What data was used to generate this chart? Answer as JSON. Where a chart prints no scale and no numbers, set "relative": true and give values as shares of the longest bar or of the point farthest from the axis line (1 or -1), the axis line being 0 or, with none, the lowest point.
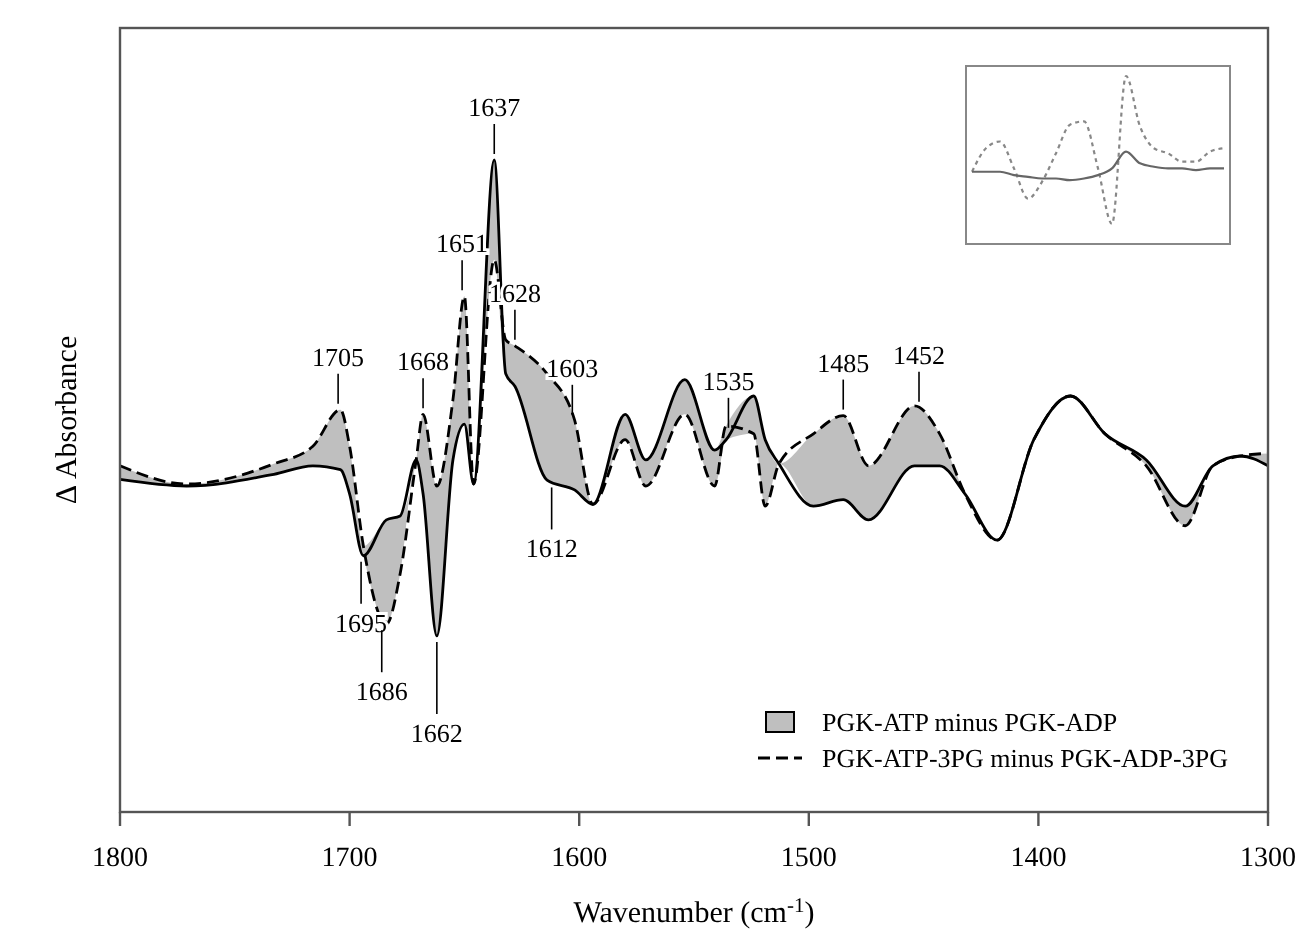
{
  "chart_data": [
    {
      "type": "line",
      "xlabel": "Wavenumber (cm$^{-1}$)",
      "ylabel": "Δ Absorbance",
      "relative": true,
      "xlim": [
        1800,
        1300
      ],
      "xticks": [
        1800,
        1700,
        1600,
        1500,
        1400,
        1300
      ],
      "legend": "bottom right",
      "grid": false,
      "marker": "none",
      "x": [
        1800,
        1771,
        1733,
        1716,
        1704,
        1700,
        1694,
        1684,
        1678,
        1671,
        1668,
        1662,
        1655,
        1650,
        1646,
        1637,
        1632,
        1628,
        1614,
        1602,
        1594,
        1580,
        1571,
        1554,
        1541,
        1536,
        1524,
        1519,
        1513,
        1498,
        1485,
        1474,
        1454,
        1443,
        1432,
        1418,
        1402,
        1386,
        1371,
        1353,
        1336,
        1324,
        1312,
        1300
      ],
      "series": [
        {
          "name": "PGK-ATP minus PGK-ADP",
          "color": "#000000",
          "line_style": "solid",
          "values": [
            0.51,
            0.5,
            0.518,
            0.531,
            0.525,
            0.488,
            0.393,
            0.448,
            0.454,
            0.54,
            0.488,
            0.27,
            0.54,
            0.595,
            0.503,
            1,
            0.672,
            0.653,
            0.509,
            0.494,
            0.472,
            0.61,
            0.54,
            0.663,
            0.555,
            0.571,
            0.638,
            0.571,
            0.534,
            0.469,
            0.479,
            0.448,
            0.531,
            0.531,
            0.488,
            0.417,
            0.571,
            0.638,
            0.58,
            0.54,
            0.469,
            0.531,
            0.546,
            0.531
          ],
          "lower": [
            0.51,
            0.5,
            0.518,
            0.531,
            0.525,
            0.488,
            0.393,
            0.288,
            0.365,
            0.54,
            0.488,
            0.27,
            0.54,
            0.595,
            0.503,
            0.847,
            0.672,
            0.653,
            0.509,
            0.494,
            0.472,
            0.571,
            0.5,
            0.61,
            0.5,
            0.571,
            0.58,
            0.469,
            0.534,
            0.469,
            0.479,
            0.448,
            0.531,
            0.531,
            0.488,
            0.417,
            0.571,
            0.638,
            0.58,
            0.531,
            0.439,
            0.531,
            0.546,
            0.531
          ],
          "upper": [
            0.531,
            0.503,
            0.534,
            0.561,
            0.617,
            0.561,
            0.408,
            0.448,
            0.454,
            0.54,
            0.61,
            0.5,
            0.632,
            0.791,
            0.503,
            1,
            0.724,
            0.715,
            0.672,
            0.601,
            0.472,
            0.61,
            0.54,
            0.663,
            0.555,
            0.592,
            0.638,
            0.571,
            0.534,
            0.58,
            0.608,
            0.531,
            0.623,
            0.58,
            0.488,
            0.417,
            0.571,
            0.638,
            0.58,
            0.54,
            0.469,
            0.531,
            0.546,
            0.55
          ]
        },
        {
          "name": "PGK-ATP-3PG minus PGK-ADP-3PG",
          "color": "#000000",
          "line_style": "dashed",
          "values": [
            0.531,
            0.503,
            0.534,
            0.561,
            0.617,
            0.561,
            0.408,
            0.288,
            0.365,
            0.54,
            0.61,
            0.5,
            0.632,
            0.791,
            0.503,
            0.847,
            0.724,
            0.715,
            0.672,
            0.601,
            0.472,
            0.571,
            0.5,
            0.61,
            0.5,
            0.592,
            0.58,
            0.469,
            0.534,
            0.58,
            0.608,
            0.531,
            0.623,
            0.58,
            0.488,
            0.417,
            0.571,
            0.638,
            0.58,
            0.531,
            0.439,
            0.531,
            0.546,
            0.55
          ]
        }
      ],
      "annotations": [
        {
          "text": "1705",
          "x": 1705,
          "y": 0.617
        },
        {
          "text": "1695",
          "x": 1695,
          "y": 0.393
        },
        {
          "text": "1686",
          "x": 1686,
          "y": 0.288
        },
        {
          "text": "1668",
          "x": 1668,
          "y": 0.61
        },
        {
          "text": "1662",
          "x": 1662,
          "y": 0.27
        },
        {
          "text": "1651",
          "x": 1651,
          "y": 0.791
        },
        {
          "text": "1637",
          "x": 1637,
          "y": 1
        },
        {
          "text": "1628",
          "x": 1628,
          "y": 0.715
        },
        {
          "text": "1612",
          "x": 1612,
          "y": 0.507
        },
        {
          "text": "1603",
          "x": 1603,
          "y": 0.6
        },
        {
          "text": "1535",
          "x": 1535,
          "y": 0.58
        },
        {
          "text": "1485",
          "x": 1485,
          "y": 0.608
        },
        {
          "text": "1452",
          "x": 1452,
          "y": 0.62
        }
      ]
    },
    {
      "type": "line",
      "relative": true,
      "marker": "none",
      "categories": [
        null,
        null,
        null,
        null,
        null,
        null,
        null,
        null,
        null,
        null,
        null,
        null,
        null,
        null,
        null,
        null,
        null,
        null,
        null
      ],
      "series": [
        {
          "color": "#888888",
          "line_style": "dotted",
          "values": [
            0.43,
            0.57,
            0.61,
            0.45,
            0.27,
            0.37,
            0.54,
            0.71,
            0.73,
            0.45,
            0.12,
            1,
            0.7,
            0.57,
            0.54,
            0.49,
            0.49,
            0.55,
            0.57
          ]
        },
        {
          "color": "#666666",
          "line_style": "solid",
          "values": [
            0.43,
            0.43,
            0.43,
            0.41,
            0.4,
            0.39,
            0.39,
            0.38,
            0.39,
            0.41,
            0.45,
            0.55,
            0.48,
            0.46,
            0.45,
            0.45,
            0.44,
            0.45,
            0.45
          ]
        }
      ]
    }
  ]
}
